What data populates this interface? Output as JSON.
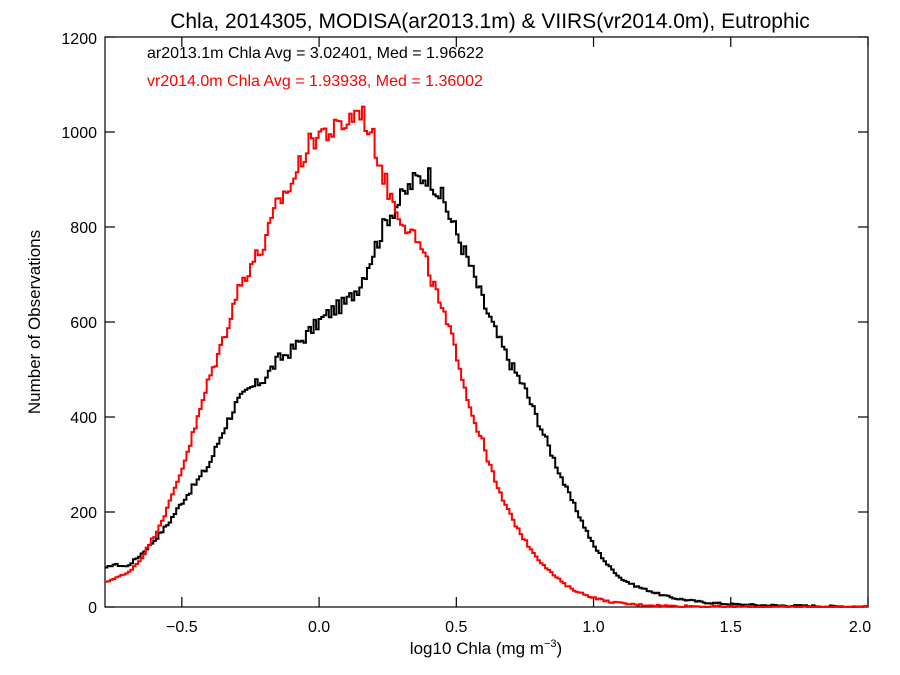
{
  "chart_data": {
    "type": "line",
    "step": true,
    "title": "Chla, 2014305, MODISA(ar2013.1m) & VIIRS(vr2014.0m), Eutrophic",
    "xlabel_main": "log10 Chla (mg m",
    "xlabel_sup": "−3",
    "xlabel_close": ")",
    "ylabel": "Number of Observations",
    "xlim": [
      -0.78,
      2.0
    ],
    "ylim": [
      0,
      1200
    ],
    "x_ticks": [
      -0.5,
      0.0,
      0.5,
      1.0,
      1.5,
      2.0
    ],
    "x_tick_labels": [
      "−0.5",
      "0.0",
      "0.5",
      "1.0",
      "1.5",
      "2.0"
    ],
    "y_ticks": [
      0,
      200,
      400,
      600,
      800,
      1000,
      1200
    ],
    "y_tick_labels": [
      "0",
      "200",
      "400",
      "600",
      "800",
      "1000",
      "1200"
    ],
    "annotations": [
      {
        "text": "ar2013.1m Chla Avg = 3.02401, Med = 1.96622",
        "color": "#000000"
      },
      {
        "text": "vr2014.0m Chla Avg = 1.93938, Med = 1.36002",
        "color": "#ff0000"
      }
    ],
    "series": [
      {
        "color": "#000000",
        "x": [
          -0.78,
          -0.75,
          -0.7,
          -0.65,
          -0.6,
          -0.55,
          -0.5,
          -0.45,
          -0.4,
          -0.35,
          -0.3,
          -0.25,
          -0.2,
          -0.15,
          -0.1,
          -0.05,
          0.0,
          0.05,
          0.1,
          0.15,
          0.2,
          0.25,
          0.3,
          0.35,
          0.4,
          0.45,
          0.5,
          0.55,
          0.6,
          0.65,
          0.7,
          0.75,
          0.8,
          0.85,
          0.9,
          0.95,
          1.0,
          1.05,
          1.1,
          1.15,
          1.2,
          1.25,
          1.3,
          1.35,
          1.4,
          1.45,
          1.5,
          1.55,
          1.6,
          1.7,
          1.8,
          1.9,
          2.0
        ],
        "y": [
          80,
          90,
          85,
          110,
          140,
          175,
          220,
          260,
          300,
          370,
          430,
          460,
          480,
          520,
          540,
          570,
          600,
          625,
          640,
          680,
          750,
          820,
          860,
          900,
          910,
          860,
          790,
          720,
          640,
          570,
          510,
          460,
          390,
          320,
          250,
          190,
          130,
          90,
          60,
          45,
          35,
          25,
          18,
          14,
          10,
          8,
          6,
          5,
          4,
          3,
          2,
          1,
          1
        ]
      },
      {
        "color": "#ff0000",
        "x": [
          -0.78,
          -0.75,
          -0.7,
          -0.65,
          -0.6,
          -0.55,
          -0.5,
          -0.45,
          -0.4,
          -0.35,
          -0.3,
          -0.25,
          -0.2,
          -0.15,
          -0.1,
          -0.05,
          0.0,
          0.05,
          0.1,
          0.15,
          0.2,
          0.25,
          0.3,
          0.35,
          0.4,
          0.45,
          0.5,
          0.55,
          0.6,
          0.65,
          0.7,
          0.75,
          0.8,
          0.85,
          0.9,
          0.95,
          1.0,
          1.05,
          1.1,
          1.15,
          1.2,
          1.25,
          1.3,
          1.35,
          1.4,
          1.5,
          1.6,
          1.7,
          1.8,
          1.9,
          2.0
        ],
        "y": [
          50,
          60,
          70,
          100,
          150,
          210,
          290,
          380,
          480,
          560,
          660,
          720,
          760,
          850,
          890,
          960,
          1000,
          1000,
          1020,
          1050,
          980,
          880,
          820,
          780,
          710,
          620,
          540,
          420,
          340,
          250,
          190,
          140,
          100,
          70,
          45,
          30,
          20,
          12,
          8,
          5,
          4,
          3,
          2,
          2,
          1,
          1,
          0,
          0,
          0,
          0,
          0
        ]
      }
    ]
  }
}
